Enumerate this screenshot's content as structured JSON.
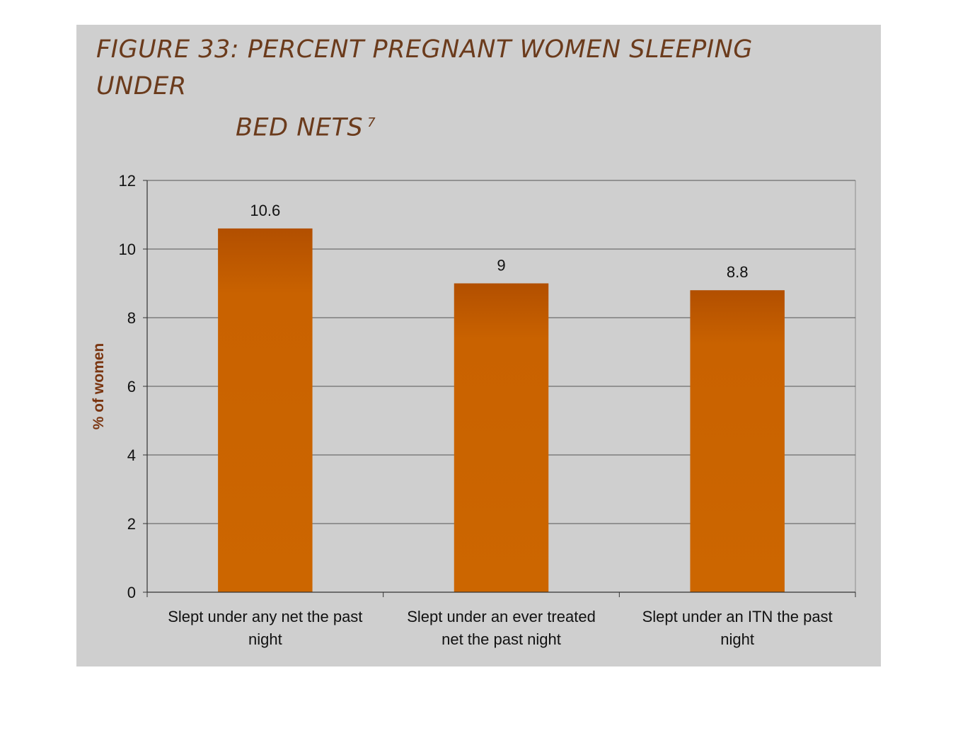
{
  "chart_data": {
    "type": "bar",
    "title": "FIGURE 33: PERCENT PREGNANT WOMEN SLEEPING UNDER BED NETS",
    "title_line1": "FIGURE 33: PERCENT PREGNANT WOMEN SLEEPING UNDER",
    "title_line2": "BED NETS",
    "title_superscript": "7",
    "ylabel": "% of women",
    "xlabel": "",
    "ylim": [
      0,
      12
    ],
    "yticks": [
      0,
      2,
      4,
      6,
      8,
      10,
      12
    ],
    "grid": true,
    "legend": "none",
    "categories": [
      [
        "Slept under any net the past",
        "night"
      ],
      [
        "Slept under an ever treated",
        "net the past night"
      ],
      [
        "Slept under an ITN the past",
        "night"
      ]
    ],
    "values": [
      10.6,
      9,
      8.8
    ],
    "data_labels": [
      "10.6",
      "9",
      "8.8"
    ],
    "colors": {
      "bar": "#cc6600",
      "bar_dark": "#b55200",
      "background": "#cfcfcf",
      "title": "#6b3b1c",
      "ylabel": "#7a3510"
    }
  }
}
